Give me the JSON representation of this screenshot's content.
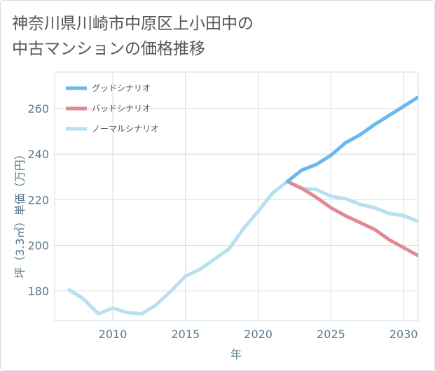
{
  "title_lines": [
    "神奈川県川崎市中原区上小田中の",
    "中古マンションの価格推移"
  ],
  "colors": {
    "good": "#6bb8ee",
    "bad": "#e08a94",
    "normal": "#b9e0f0",
    "grid": "#cfdde6",
    "axis": "#5a7a8c"
  },
  "chart_data": {
    "type": "line",
    "title": "神奈川県川崎市中原区上小田中の中古マンションの価格推移",
    "xlabel": "年",
    "ylabel": "坪（3.3㎡）単価（万円）",
    "xlim": [
      2006,
      2031
    ],
    "ylim": [
      167,
      276
    ],
    "x_ticks": [
      2010,
      2015,
      2020,
      2025,
      2030
    ],
    "y_ticks": [
      180,
      200,
      220,
      240,
      260
    ],
    "legend_position": "top-left",
    "series": [
      {
        "name": "グッドシナリオ",
        "color_key": "good",
        "x": [
          2022,
          2023,
          2024,
          2025,
          2026,
          2027,
          2028,
          2029,
          2030,
          2031
        ],
        "y": [
          228,
          233,
          235.5,
          239.5,
          245,
          248.5,
          253,
          257,
          261,
          265
        ]
      },
      {
        "name": "バッドシナリオ",
        "color_key": "bad",
        "x": [
          2022,
          2023,
          2024,
          2025,
          2026,
          2027,
          2028,
          2029,
          2030,
          2031
        ],
        "y": [
          228,
          225,
          221,
          216.5,
          213,
          210,
          207,
          202.5,
          199,
          195.5
        ]
      },
      {
        "name": "ノーマルシナリオ",
        "color_key": "normal",
        "x": [
          2007,
          2008,
          2009,
          2010,
          2011,
          2012,
          2013,
          2014,
          2015,
          2016,
          2017,
          2018,
          2019,
          2020,
          2021,
          2022,
          2023,
          2024,
          2025,
          2026,
          2027,
          2028,
          2029,
          2030,
          2031
        ],
        "y": [
          180.5,
          176.5,
          170,
          172.5,
          170.5,
          170,
          174,
          180,
          186.5,
          189.5,
          194,
          198.5,
          207.5,
          215,
          223,
          228,
          225,
          224.5,
          221.5,
          220.5,
          218,
          216.5,
          214,
          213,
          210.5
        ]
      }
    ]
  }
}
